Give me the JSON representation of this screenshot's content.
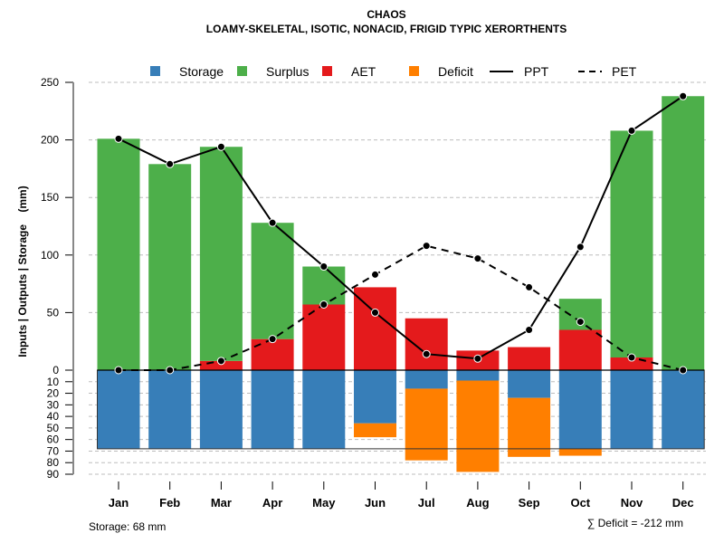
{
  "chart_data": {
    "type": "bar",
    "title": "CHAOS",
    "subtitle": "LOAMY-SKELETAL, ISOTIC, NONACID, FRIGID TYPIC XERORTHENTS",
    "ylabel": "Inputs | Outputs | Storage    (mm)",
    "xlabel": "",
    "categories": [
      "Jan",
      "Feb",
      "Mar",
      "Apr",
      "May",
      "Jun",
      "Jul",
      "Aug",
      "Sep",
      "Oct",
      "Nov",
      "Dec"
    ],
    "ylim_positive": [
      0,
      250
    ],
    "ylim_negative": [
      0,
      90
    ],
    "yticks_positive": [
      0,
      50,
      100,
      150,
      200,
      250
    ],
    "yticks_negative": [
      10,
      20,
      30,
      40,
      50,
      60,
      70,
      80,
      90
    ],
    "grid": true,
    "legend_position": "top",
    "legend": [
      {
        "name": "Storage",
        "kind": "box",
        "color": "#377EB8"
      },
      {
        "name": "Surplus",
        "kind": "box",
        "color": "#4DAF4A"
      },
      {
        "name": "AET",
        "kind": "box",
        "color": "#E41A1C"
      },
      {
        "name": "Deficit",
        "kind": "box",
        "color": "#FF7F00"
      },
      {
        "name": "PPT",
        "kind": "solid-line",
        "color": "#000000"
      },
      {
        "name": "PET",
        "kind": "dashed-line",
        "color": "#000000"
      }
    ],
    "series": [
      {
        "name": "AET",
        "color": "#E41A1C",
        "values": [
          0,
          0,
          8,
          27,
          57,
          72,
          45,
          17,
          20,
          35,
          11,
          0
        ]
      },
      {
        "name": "Surplus",
        "color": "#4DAF4A",
        "values": [
          201,
          179,
          186,
          101,
          33,
          0,
          0,
          0,
          0,
          27,
          197,
          238
        ]
      },
      {
        "name": "Storage",
        "color": "#377EB8",
        "values": [
          68,
          68,
          68,
          68,
          68,
          46,
          16,
          9,
          24,
          68,
          68,
          68
        ]
      },
      {
        "name": "Deficit",
        "color": "#FF7F00",
        "values": [
          0,
          0,
          0,
          0,
          0,
          -12,
          -62,
          -79,
          -51,
          -6,
          0,
          0
        ]
      },
      {
        "name": "PPT",
        "color": "#000000",
        "values": [
          201,
          179,
          194,
          128,
          90,
          50,
          14,
          10,
          35,
          107,
          208,
          238
        ]
      },
      {
        "name": "PET",
        "color": "#000000",
        "values": [
          0,
          0,
          8,
          27,
          57,
          83,
          108,
          97,
          72,
          42,
          11,
          0
        ]
      }
    ],
    "storage_capacity": 68,
    "annotations": {
      "storage": "Storage: 68 mm",
      "deficit": "∑ Deficit = -212 mm"
    }
  }
}
